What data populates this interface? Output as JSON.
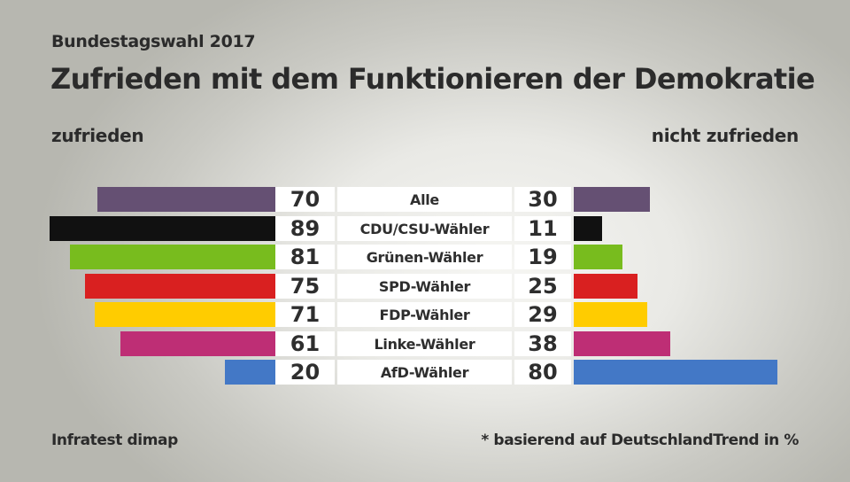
{
  "header": {
    "subtitle": "Bundestagswahl 2017",
    "title": "Zufrieden mit dem Funktionieren der Demokratie"
  },
  "legend": {
    "left": "zufrieden",
    "right": "nicht zufrieden"
  },
  "footer": {
    "source": "Infratest dimap",
    "note": "* basierend auf DeutschlandTrend in %"
  },
  "chart_data": {
    "type": "bar",
    "orientation": "horizontal-diverging",
    "title": "Zufrieden mit dem Funktionieren der Demokratie",
    "subtitle": "Bundestagswahl 2017",
    "unit": "%",
    "categories": [
      "Alle",
      "CDU/CSU-Wähler",
      "Grünen-Wähler",
      "SPD-Wähler",
      "FDP-Wähler",
      "Linke-Wähler",
      "AfD-Wähler"
    ],
    "colors": [
      "#655073",
      "#111111",
      "#78bc1e",
      "#d92020",
      "#ffcc00",
      "#be2e75",
      "#4378c6"
    ],
    "series": [
      {
        "name": "zufrieden",
        "values": [
          70,
          89,
          81,
          75,
          71,
          61,
          20
        ]
      },
      {
        "name": "nicht zufrieden",
        "values": [
          30,
          11,
          19,
          25,
          29,
          38,
          80
        ]
      }
    ],
    "xlim": [
      0,
      100
    ],
    "source": "Infratest dimap",
    "note": "* basierend auf DeutschlandTrend in %"
  }
}
